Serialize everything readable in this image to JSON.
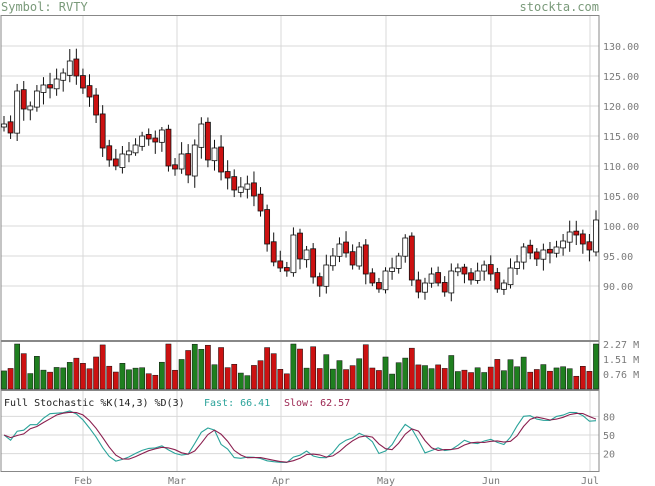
{
  "header": {
    "symbol_label": "Symbol: RVTY",
    "site": "stockta.com"
  },
  "colors": {
    "up": "#ffffff",
    "down": "#cc1111",
    "up_vol": "#1f7f1f",
    "down_vol": "#cc1111",
    "fast": "#2aa39a",
    "slow": "#8a1f4f",
    "grid": "#d9d9d9"
  },
  "chart_data": [
    {
      "type": "candlestick",
      "title": "",
      "months": [
        "Feb",
        "Mar",
        "Apr",
        "May",
        "Jun",
        "Jul"
      ],
      "y_ticks": [
        "130.00",
        "125.00",
        "120.00",
        "115.00",
        "110.00",
        "105.00",
        "100.00",
        "95.00",
        "90.00"
      ],
      "ylim": [
        81,
        135
      ],
      "closes": [
        117.0,
        115.5,
        122.5,
        119.5,
        120.0,
        122.5,
        123.5,
        123.0,
        124.5,
        125.5,
        127.5,
        125.0,
        123.0,
        121.5,
        118.5,
        113.0,
        111.0,
        110.0,
        112.0,
        112.5,
        113.5,
        115.0,
        114.5,
        114.0,
        116.0,
        110.0,
        109.5,
        112.0,
        108.5,
        113.5,
        117.0,
        111.0,
        113.0,
        109.0,
        108.0,
        106.0,
        106.5,
        107.0,
        105.0,
        102.5,
        97.0,
        94.0,
        93.0,
        92.5,
        98.5,
        94.5,
        96.0,
        91.5,
        90.0,
        93.5,
        95.0,
        97.0,
        95.5,
        93.5,
        96.5,
        92.0,
        90.5,
        89.5,
        92.5,
        93.0,
        95.0,
        98.0,
        91.0,
        89.0,
        90.5,
        92.0,
        90.5,
        89.0,
        92.5,
        93.0,
        92.0,
        91.0,
        92.5,
        93.5,
        92.0,
        89.5,
        90.5,
        93.0,
        94.0,
        96.5,
        95.5,
        94.5,
        96.0,
        95.5,
        96.5,
        97.5,
        99.0,
        98.5,
        97.0,
        96.0,
        101.0
      ],
      "volume_ticks": [
        "2.27 M",
        "1.51 M",
        "0.76 M"
      ]
    },
    {
      "type": "line",
      "title": "Full Stochastic %K(14,3) %D(3)",
      "series": [
        {
          "name": "Fast"
        },
        {
          "name": "Slow"
        }
      ],
      "fast_label": "Fast: 66.41",
      "slow_label": "Slow: 62.57",
      "y_ticks": [
        "80",
        "50",
        "20"
      ],
      "ylim": [
        0,
        100
      ]
    }
  ]
}
